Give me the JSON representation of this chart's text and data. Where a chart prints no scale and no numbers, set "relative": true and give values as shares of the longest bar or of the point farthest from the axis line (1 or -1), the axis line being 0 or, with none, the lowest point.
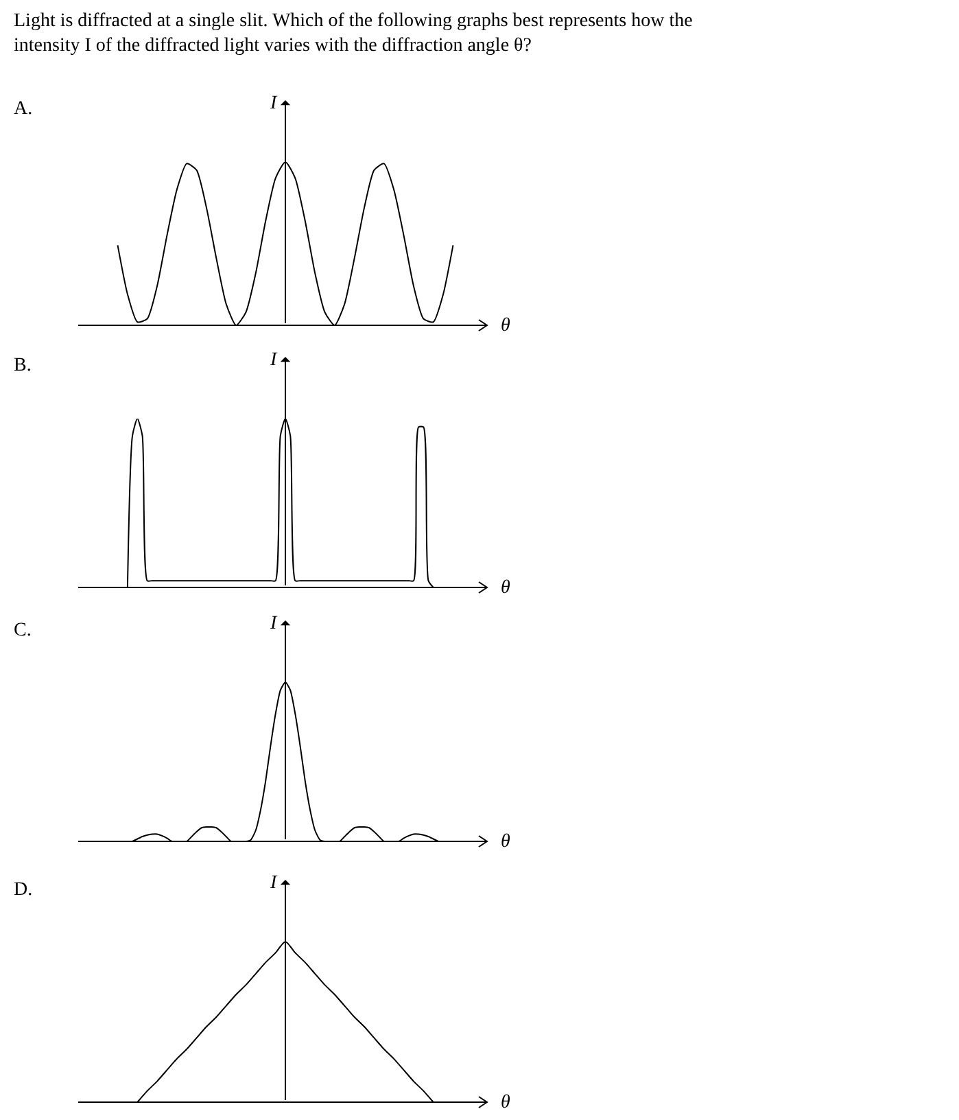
{
  "chart_data": [
    {
      "type": "other",
      "title": "Light is diffracted at a single slit. Which of the following graphs best represents how the intensity I of the diffracted light varies with the diffraction angle θ?"
    },
    {
      "type": "line",
      "title": "A.",
      "xlabel": "θ",
      "ylabel": "I",
      "relative": true,
      "tick_labels": false,
      "color": "#000000",
      "categories": [
        null,
        null,
        null,
        null,
        null,
        null,
        null,
        null,
        null,
        null,
        null,
        null,
        null,
        null,
        null,
        null,
        null,
        null,
        null,
        null,
        null,
        null,
        null,
        null,
        null,
        null,
        null,
        null,
        null,
        null,
        null,
        null,
        null,
        null,
        null,
        null,
        null,
        null,
        null,
        null,
        null,
        null,
        null
      ],
      "values": [
        null,
        null,
        null,
        null,
        0.49,
        0.19,
        0.02,
        0.04,
        0.24,
        0.55,
        0.83,
        0.99,
        0.95,
        0.72,
        0.41,
        0.13,
        0.0,
        0.08,
        0.32,
        0.64,
        0.9,
        1,
        0.9,
        0.64,
        0.32,
        0.08,
        0.0,
        0.13,
        0.41,
        0.72,
        0.95,
        0.99,
        0.83,
        0.55,
        0.24,
        0.04,
        0.02,
        0.19,
        0.49,
        null,
        null,
        null,
        null
      ]
    },
    {
      "type": "line",
      "title": "B.",
      "xlabel": "θ",
      "ylabel": "I",
      "relative": true,
      "tick_labels": false,
      "color": "#000000",
      "categories": [
        null,
        null,
        null,
        null,
        null,
        null,
        null,
        null,
        null,
        null,
        null,
        null,
        null,
        null,
        null,
        null,
        null,
        null,
        null,
        null,
        null,
        null,
        null,
        null,
        null,
        null,
        null,
        null,
        null,
        null,
        null,
        null,
        null,
        null,
        null,
        null,
        null,
        null,
        null,
        null,
        null,
        null,
        null,
        null,
        null,
        null,
        null,
        null,
        null,
        null,
        null,
        null,
        null,
        null,
        null,
        null,
        null,
        null,
        null,
        null,
        null,
        null,
        null,
        null,
        null,
        null,
        null,
        null,
        null,
        null,
        null,
        null,
        null,
        null,
        null,
        null,
        null,
        null,
        null,
        null,
        null,
        null,
        null,
        null,
        null
      ],
      "values": [
        null,
        null,
        null,
        null,
        null,
        null,
        null,
        null,
        null,
        null,
        0.0,
        0.9,
        1,
        0.9,
        0.04,
        0.04,
        0.04,
        0.04,
        0.04,
        0.04,
        0.04,
        0.04,
        0.04,
        0.04,
        0.04,
        0.04,
        0.04,
        0.04,
        0.04,
        0.04,
        0.04,
        0.04,
        0.04,
        0.04,
        0.04,
        0.04,
        0.04,
        0.04,
        0.04,
        0.04,
        0.04,
        0.9,
        1,
        0.9,
        0.04,
        0.04,
        0.04,
        0.04,
        0.04,
        0.04,
        0.04,
        0.04,
        0.04,
        0.04,
        0.04,
        0.04,
        0.04,
        0.04,
        0.04,
        0.04,
        0.04,
        0.04,
        0.04,
        0.04,
        0.04,
        0.04,
        0.04,
        0.04,
        0.04,
        0.95,
        0.95,
        0.04,
        0.0,
        null,
        null,
        null,
        null,
        null,
        null,
        null,
        null,
        null,
        null,
        null,
        null
      ]
    },
    {
      "type": "line",
      "title": "C.",
      "xlabel": "θ",
      "ylabel": "I",
      "relative": true,
      "tick_labels": false,
      "color": "#000000",
      "categories": [
        null,
        null,
        null,
        null,
        null,
        null,
        null,
        null,
        null,
        null,
        null,
        null,
        null,
        null,
        null,
        null,
        null,
        null,
        null,
        null,
        null,
        null,
        null,
        null,
        null,
        null,
        null,
        null,
        null,
        null,
        null,
        null,
        null,
        null,
        null,
        null,
        null,
        null,
        null,
        null,
        null,
        null,
        null,
        null,
        null,
        null,
        null,
        null,
        null,
        null,
        null,
        null,
        null,
        null,
        null,
        null,
        null,
        null,
        null,
        null,
        null,
        null,
        null,
        null,
        null,
        null,
        null,
        null,
        null,
        null,
        null,
        null,
        null,
        null,
        null,
        null,
        null,
        null,
        null,
        null,
        null,
        null,
        null,
        null,
        null
      ],
      "values": [
        null,
        null,
        null,
        null,
        null,
        null,
        null,
        null,
        null,
        null,
        null,
        0.0,
        0.015,
        0.03,
        0.04,
        0.045,
        0.045,
        0.035,
        0.02,
        0.0,
        0.0,
        0.0,
        0.0,
        0.03,
        0.06,
        0.085,
        0.09,
        0.09,
        0.085,
        0.06,
        0.03,
        0.0,
        0.0,
        0.0,
        0.0,
        0.01,
        0.07,
        0.2,
        0.38,
        0.6,
        0.8,
        0.95,
        1,
        0.95,
        0.8,
        0.6,
        0.38,
        0.2,
        0.07,
        0.01,
        0.0,
        0.0,
        0.0,
        0.0,
        0.03,
        0.06,
        0.085,
        0.09,
        0.09,
        0.085,
        0.06,
        0.03,
        0.0,
        0.0,
        0.0,
        0.0,
        0.02,
        0.035,
        0.045,
        0.045,
        0.04,
        0.03,
        0.015,
        0.0,
        null,
        null,
        null,
        null,
        null,
        null,
        null,
        null,
        null,
        null,
        null
      ]
    },
    {
      "type": "line",
      "title": "D.",
      "xlabel": "θ",
      "ylabel": "I",
      "relative": true,
      "tick_labels": false,
      "color": "#000000",
      "categories": [
        null,
        null,
        null,
        null,
        null,
        null,
        null,
        null,
        null,
        null,
        null,
        null,
        null,
        null,
        null,
        null,
        null,
        null,
        null,
        null,
        null,
        null,
        null,
        null,
        null,
        null,
        null,
        null,
        null,
        null,
        null,
        null,
        null,
        null,
        null,
        null,
        null,
        null,
        null,
        null,
        null,
        null,
        null
      ],
      "values": [
        null,
        null,
        null,
        null,
        null,
        null,
        0,
        0.07,
        0.13,
        0.2,
        0.27,
        0.33,
        0.4,
        0.47,
        0.53,
        0.6,
        0.67,
        0.73,
        0.8,
        0.87,
        0.93,
        1,
        0.93,
        0.87,
        0.8,
        0.73,
        0.67,
        0.6,
        0.53,
        0.47,
        0.4,
        0.33,
        0.27,
        0.2,
        0.13,
        0.07,
        0,
        null,
        null,
        null,
        null,
        null,
        null
      ]
    }
  ]
}
